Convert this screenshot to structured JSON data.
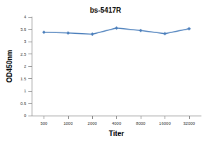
{
  "chart_data": {
    "type": "line",
    "title": "bs-5417R",
    "x_label": "Titer",
    "y_label": "OD450nm",
    "categories": [
      "500",
      "1000",
      "2000",
      "4000",
      "8000",
      "16000",
      "32000"
    ],
    "values": [
      3.38,
      3.35,
      3.3,
      3.55,
      3.45,
      3.32,
      3.52
    ],
    "color": "#4a7ebb",
    "marker": "diamond",
    "ylim": [
      0,
      4
    ],
    "yticks": [
      0,
      0.5,
      1,
      1.5,
      2,
      2.5,
      3,
      3.5,
      4
    ],
    "grid": false
  }
}
